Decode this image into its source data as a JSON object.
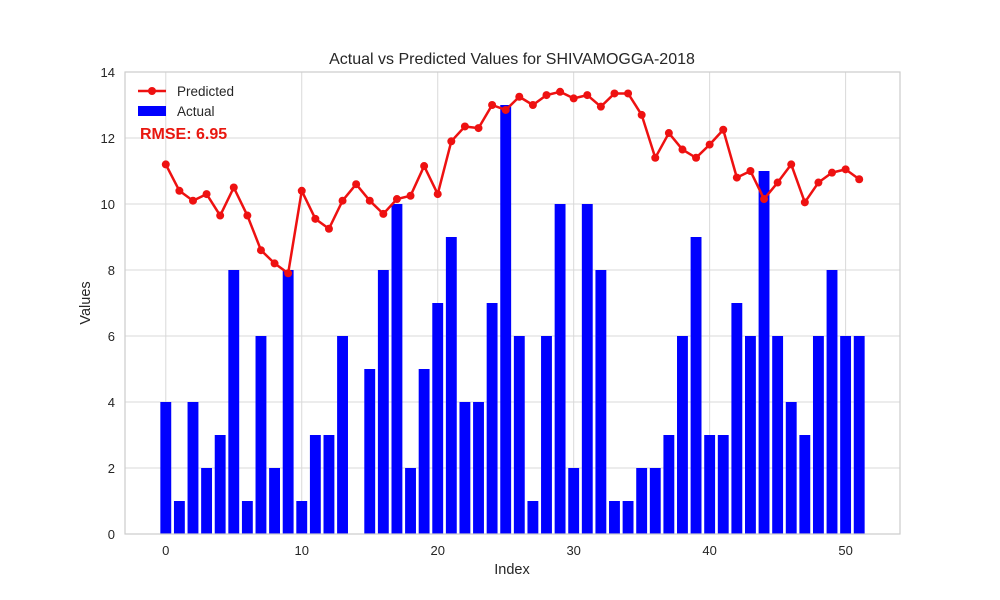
{
  "chart_data": {
    "type": "bar",
    "title": "Actual vs Predicted Values for SHIVAMOGGA-2018",
    "xlabel": "Index",
    "ylabel": "Values",
    "xlim": [
      -3,
      54
    ],
    "ylim": [
      0,
      14
    ],
    "xticks": [
      0,
      10,
      20,
      30,
      40,
      50
    ],
    "yticks": [
      0,
      2,
      4,
      6,
      8,
      10,
      12,
      14
    ],
    "grid": true,
    "legend_position": "top-left",
    "annotation": {
      "text": "RMSE: 6.95",
      "color": "#e8170f"
    },
    "series": [
      {
        "name": "Predicted",
        "type": "line",
        "marker": "circle",
        "color": "#ee1111",
        "x": [
          0,
          1,
          2,
          3,
          4,
          5,
          6,
          7,
          8,
          9,
          10,
          11,
          12,
          13,
          14,
          15,
          16,
          17,
          18,
          19,
          20,
          21,
          22,
          23,
          24,
          25,
          26,
          27,
          28,
          29,
          30,
          31,
          32,
          33,
          34,
          35,
          36,
          37,
          38,
          39,
          40,
          41,
          42,
          43,
          44,
          45,
          46,
          47,
          48,
          49,
          50,
          51
        ],
        "values": [
          11.2,
          10.4,
          10.1,
          10.3,
          9.65,
          10.5,
          9.65,
          8.6,
          8.2,
          7.9,
          10.4,
          9.55,
          9.25,
          10.1,
          10.6,
          10.1,
          9.7,
          10.15,
          10.25,
          11.15,
          10.3,
          11.9,
          12.35,
          12.3,
          13.0,
          12.85,
          13.25,
          13.0,
          13.3,
          13.4,
          13.2,
          13.3,
          12.95,
          13.35,
          13.35,
          12.7,
          11.4,
          12.15,
          11.65,
          11.4,
          11.8,
          12.25,
          10.8,
          11.0,
          10.15,
          10.65,
          11.2,
          10.05,
          10.65,
          10.95,
          11.05,
          10.75
        ]
      },
      {
        "name": "Actual",
        "type": "bar",
        "color": "#0000ff",
        "x": [
          0,
          1,
          2,
          3,
          4,
          5,
          6,
          7,
          8,
          9,
          10,
          11,
          12,
          13,
          14,
          15,
          16,
          17,
          18,
          19,
          20,
          21,
          22,
          23,
          24,
          25,
          26,
          27,
          28,
          29,
          30,
          31,
          32,
          33,
          34,
          35,
          36,
          37,
          38,
          39,
          40,
          41,
          42,
          43,
          44,
          45,
          46,
          47,
          48,
          49,
          50,
          51
        ],
        "values": [
          4,
          1,
          4,
          2,
          3,
          8,
          1,
          6,
          2,
          8,
          1,
          3,
          3,
          6,
          0,
          5,
          8,
          10,
          2,
          5,
          7,
          9,
          4,
          4,
          7,
          13,
          6,
          1,
          6,
          10,
          2,
          10,
          8,
          1,
          1,
          2,
          2,
          3,
          6,
          9,
          3,
          3,
          7,
          6,
          11,
          6,
          4,
          3,
          6,
          8,
          6,
          6
        ]
      }
    ]
  }
}
